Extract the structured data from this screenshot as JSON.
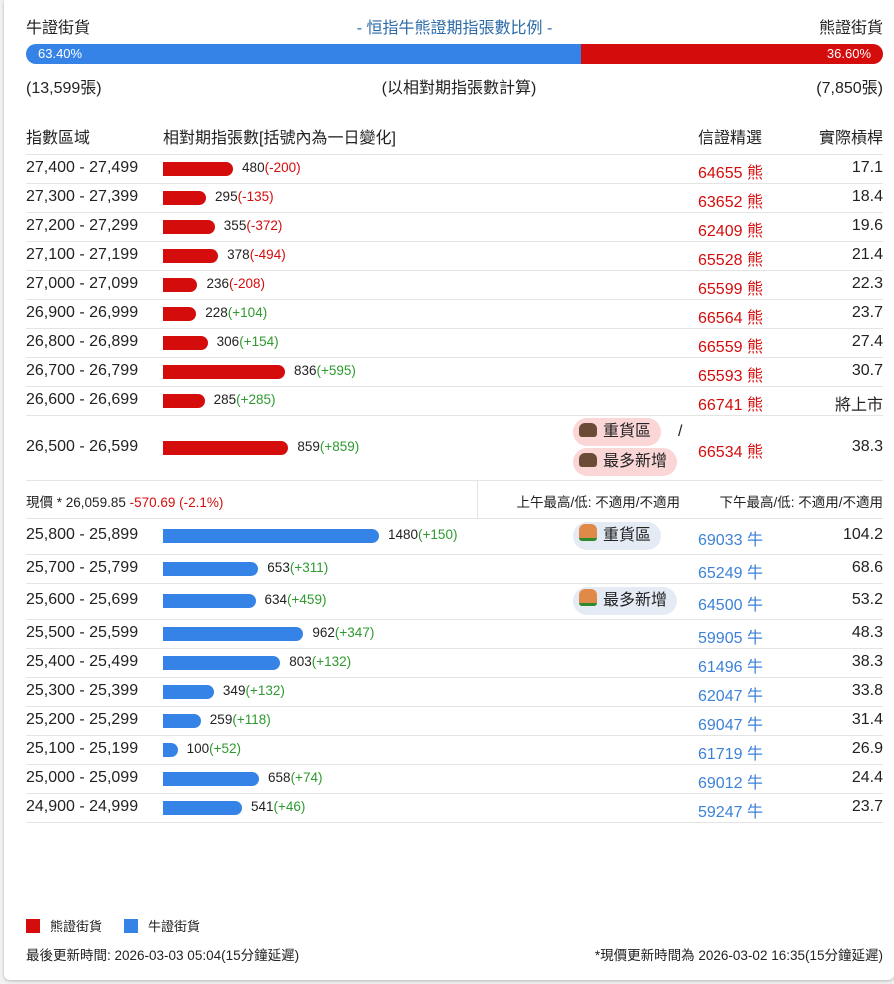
{
  "header": {
    "bull_label": "牛證街貨",
    "title": "- 恒指牛熊證期指張數比例 -",
    "bear_label": "熊證街貨",
    "bull_pct": "63.40%",
    "bear_pct": "36.60%",
    "bull_fraction": 0.634,
    "bull_count": "(13,599張)",
    "note": "(以相對期指張數計算)",
    "bear_count": "(7,850張)"
  },
  "colors": {
    "bear": "#d40c0c",
    "bull": "#3583e6"
  },
  "table": {
    "headers": [
      "指數區域",
      "相對期指張數[括號內為一日變化]",
      "信證精選",
      "實際槓桿"
    ],
    "bear_rows": [
      {
        "range": "27,400 - 27,499",
        "qty": 480,
        "qty_text": "480",
        "chg": "(-200)",
        "warrant": "64655 熊",
        "lev": "17.1"
      },
      {
        "range": "27,300 - 27,399",
        "qty": 295,
        "qty_text": "295",
        "chg": "(-135)",
        "warrant": "63652 熊",
        "lev": "18.4"
      },
      {
        "range": "27,200 - 27,299",
        "qty": 355,
        "qty_text": "355",
        "chg": "(-372)",
        "warrant": "62409 熊",
        "lev": "19.6"
      },
      {
        "range": "27,100 - 27,199",
        "qty": 378,
        "qty_text": "378",
        "chg": "(-494)",
        "warrant": "65528 熊",
        "lev": "21.4"
      },
      {
        "range": "27,000 - 27,099",
        "qty": 236,
        "qty_text": "236",
        "chg": "(-208)",
        "warrant": "65599 熊",
        "lev": "22.3"
      },
      {
        "range": "26,900 - 26,999",
        "qty": 228,
        "qty_text": "228",
        "chg": "(+104)",
        "warrant": "66564 熊",
        "lev": "23.7"
      },
      {
        "range": "26,800 - 26,899",
        "qty": 306,
        "qty_text": "306",
        "chg": "(+154)",
        "warrant": "66559 熊",
        "lev": "27.4"
      },
      {
        "range": "26,700 - 26,799",
        "qty": 836,
        "qty_text": "836",
        "chg": "(+595)",
        "warrant": "65593 熊",
        "lev": "30.7"
      },
      {
        "range": "26,600 - 26,699",
        "qty": 285,
        "qty_text": "285",
        "chg": "(+285)",
        "warrant": "66741 熊",
        "lev": "將上市"
      },
      {
        "range": "26,500 - 26,599",
        "qty": 859,
        "qty_text": "859",
        "chg": "(+859)",
        "warrant": "66534 熊",
        "lev": "38.3",
        "tag1": "重貨區",
        "sep": "/",
        "tag2": "最多新增"
      }
    ],
    "price": {
      "label": "現價 *",
      "value": "26,059.85",
      "change": "-570.69 (-2.1%)",
      "am": "上午最高/低: 不適用/不適用",
      "pm": "下午最高/低: 不適用/不適用"
    },
    "bull_rows": [
      {
        "range": "25,800 - 25,899",
        "qty": 1480,
        "qty_text": "1480",
        "chg": "(+150)",
        "warrant": "69033 牛",
        "lev": "104.2",
        "tag1": "重貨區"
      },
      {
        "range": "25,700 - 25,799",
        "qty": 653,
        "qty_text": "653",
        "chg": "(+311)",
        "warrant": "65249 牛",
        "lev": "68.6"
      },
      {
        "range": "25,600 - 25,699",
        "qty": 634,
        "qty_text": "634",
        "chg": "(+459)",
        "warrant": "64500 牛",
        "lev": "53.2",
        "tag1": "最多新增"
      },
      {
        "range": "25,500 - 25,599",
        "qty": 962,
        "qty_text": "962",
        "chg": "(+347)",
        "warrant": "59905 牛",
        "lev": "48.3"
      },
      {
        "range": "25,400 - 25,499",
        "qty": 803,
        "qty_text": "803",
        "chg": "(+132)",
        "warrant": "61496 牛",
        "lev": "38.3"
      },
      {
        "range": "25,300 - 25,399",
        "qty": 349,
        "qty_text": "349",
        "chg": "(+132)",
        "warrant": "62047 牛",
        "lev": "33.8"
      },
      {
        "range": "25,200 - 25,299",
        "qty": 259,
        "qty_text": "259",
        "chg": "(+118)",
        "warrant": "69047 牛",
        "lev": "31.4"
      },
      {
        "range": "25,100 - 25,199",
        "qty": 100,
        "qty_text": "100",
        "chg": "(+52)",
        "warrant": "61719 牛",
        "lev": "26.9"
      },
      {
        "range": "25,000 - 25,099",
        "qty": 658,
        "qty_text": "658",
        "chg": "(+74)",
        "warrant": "69012 牛",
        "lev": "24.4"
      },
      {
        "range": "24,900 - 24,999",
        "qty": 541,
        "qty_text": "541",
        "chg": "(+46)",
        "warrant": "59247 牛",
        "lev": "23.7"
      }
    ]
  },
  "legend": {
    "bear": "熊證街貨",
    "bull": "牛證街貨"
  },
  "footer": {
    "updated": "最後更新時間: 2026-03-03 05:04(15分鐘延遲)",
    "price_updated": "*現價更新時間為 2026-03-02 16:35(15分鐘延遲)"
  }
}
